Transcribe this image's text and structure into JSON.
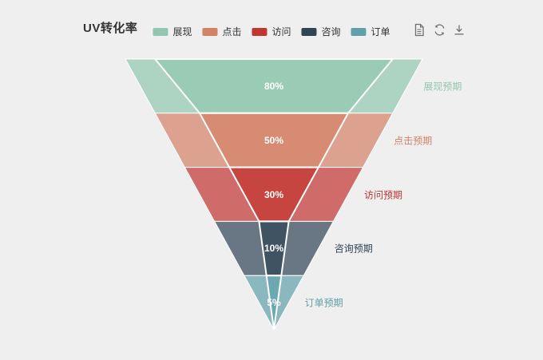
{
  "header": {
    "title": "UV转化率"
  },
  "toolbox": {
    "icons": [
      {
        "name": "data-view-icon"
      },
      {
        "name": "restore-icon"
      },
      {
        "name": "save-image-icon"
      }
    ],
    "icon_color": "#6e6e6e"
  },
  "chart_data": {
    "type": "funnel",
    "title": "UV转化率",
    "background": "#efeff0",
    "orientation": "descending-to-point",
    "legend_position": "top-center",
    "legend": [
      {
        "label": "展现",
        "color": "#91c7ae"
      },
      {
        "label": "点击",
        "color": "#d48265"
      },
      {
        "label": "访问",
        "color": "#c23531"
      },
      {
        "label": "咨询",
        "color": "#2f4554"
      },
      {
        "label": "订单",
        "color": "#61a0a8"
      }
    ],
    "series": [
      {
        "name": "预期",
        "opacity": 0.7,
        "label_position": "right",
        "data": [
          {
            "name": "展现",
            "value": 100
          },
          {
            "name": "点击",
            "value": 80
          },
          {
            "name": "访问",
            "value": 60
          },
          {
            "name": "咨询",
            "value": 40
          },
          {
            "name": "订单",
            "value": 20
          }
        ],
        "labels": [
          "展现预期",
          "点击预期",
          "访问预期",
          "咨询预期",
          "订单预期"
        ]
      },
      {
        "opacity": 0.7,
        "border_color": "#ffffff",
        "label_position": "inside",
        "label_color": "#ffffff",
        "data": [
          {
            "name": "展现",
            "value": 80
          },
          {
            "name": "点击",
            "value": 50
          },
          {
            "name": "访问",
            "value": 30
          },
          {
            "name": "咨询",
            "value": 10
          },
          {
            "name": "订单",
            "value": 5
          }
        ],
        "labels": [
          "80%",
          "50%",
          "30%",
          "10%",
          "5%"
        ]
      }
    ]
  }
}
